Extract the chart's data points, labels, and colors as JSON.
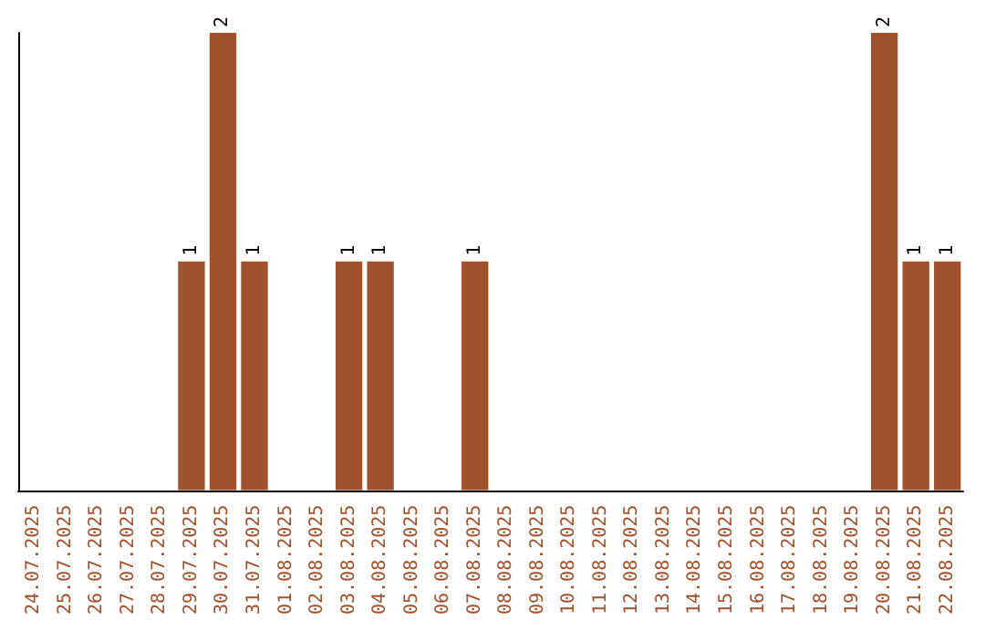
{
  "chart_data": {
    "type": "bar",
    "categories": [
      "24.07.2025",
      "25.07.2025",
      "26.07.2025",
      "27.07.2025",
      "28.07.2025",
      "29.07.2025",
      "30.07.2025",
      "31.07.2025",
      "01.08.2025",
      "02.08.2025",
      "03.08.2025",
      "04.08.2025",
      "05.08.2025",
      "06.08.2025",
      "07.08.2025",
      "08.08.2025",
      "09.08.2025",
      "10.08.2025",
      "11.08.2025",
      "12.08.2025",
      "13.08.2025",
      "14.08.2025",
      "15.08.2025",
      "16.08.2025",
      "17.08.2025",
      "18.08.2025",
      "19.08.2025",
      "20.08.2025",
      "21.08.2025",
      "22.08.2025"
    ],
    "values": [
      0,
      0,
      0,
      0,
      0,
      1,
      2,
      1,
      0,
      0,
      1,
      1,
      0,
      0,
      1,
      0,
      0,
      0,
      0,
      0,
      0,
      0,
      0,
      0,
      0,
      0,
      0,
      2,
      1,
      1
    ],
    "value_labels": [
      null,
      null,
      null,
      null,
      null,
      "1",
      "2",
      "1",
      null,
      null,
      "1",
      "1",
      null,
      null,
      "1",
      null,
      null,
      null,
      null,
      null,
      null,
      null,
      null,
      null,
      null,
      null,
      null,
      "2",
      "1",
      "1"
    ],
    "color": "#a0522d"
  }
}
